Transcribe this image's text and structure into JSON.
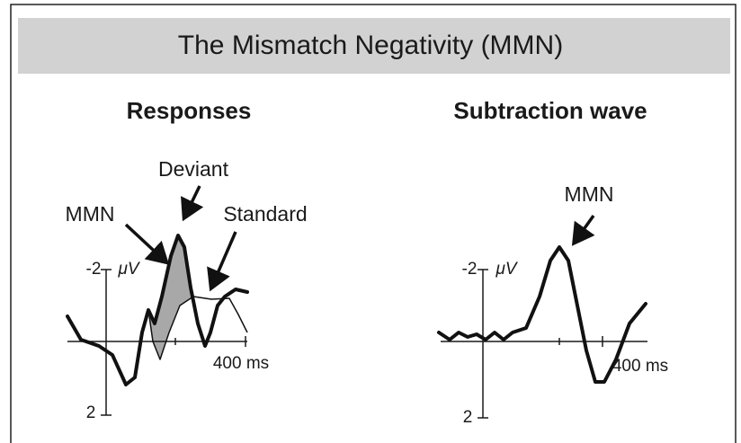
{
  "title": "The Mismatch Negativity (MMN)",
  "panels": [
    {
      "heading": "Responses",
      "labels": {
        "deviant": "Deviant",
        "mmn": "MMN",
        "standard": "Standard"
      },
      "axis": {
        "y_top": "-2",
        "y_unit": "μV",
        "y_bottom": "2",
        "x_label": "400 ms"
      }
    },
    {
      "heading": "Subtraction wave",
      "labels": {
        "mmn": "MMN"
      },
      "axis": {
        "y_top": "-2",
        "y_unit": "μV",
        "y_bottom": "2",
        "x_label": "400 ms"
      }
    }
  ]
}
